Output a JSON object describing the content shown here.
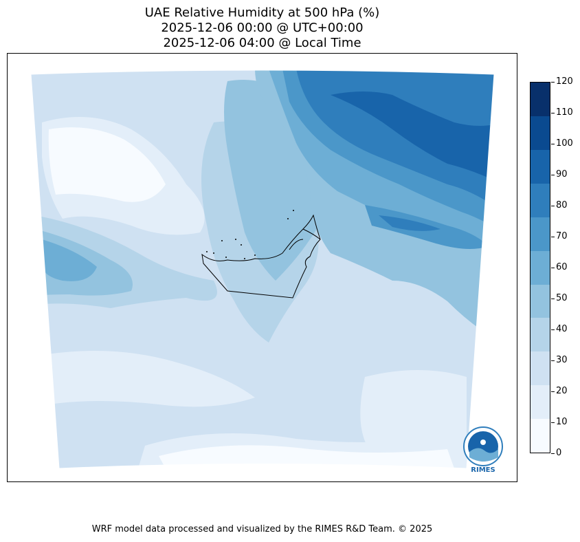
{
  "title": {
    "line1": "UAE Relative Humidity at 500 hPa (%)",
    "line2": "2025-12-06 00:00 @ UTC+00:00",
    "line3": "2025-12-06 04:00 @ Local Time"
  },
  "colorbar": {
    "ticks": [
      "0",
      "10",
      "20",
      "30",
      "40",
      "50",
      "60",
      "70",
      "80",
      "90",
      "100",
      "110",
      "120"
    ],
    "colors": [
      "#f7fbff",
      "#e3eef9",
      "#cfe1f2",
      "#b5d4e9",
      "#93c3df",
      "#6daed5",
      "#4b97c9",
      "#2f7ebc",
      "#1864aa",
      "#0a4a90",
      "#08306b"
    ]
  },
  "logo": {
    "text": "RIMES"
  },
  "footer": "WRF model data processed and visualized by the RIMES R&D Team. © 2025"
}
